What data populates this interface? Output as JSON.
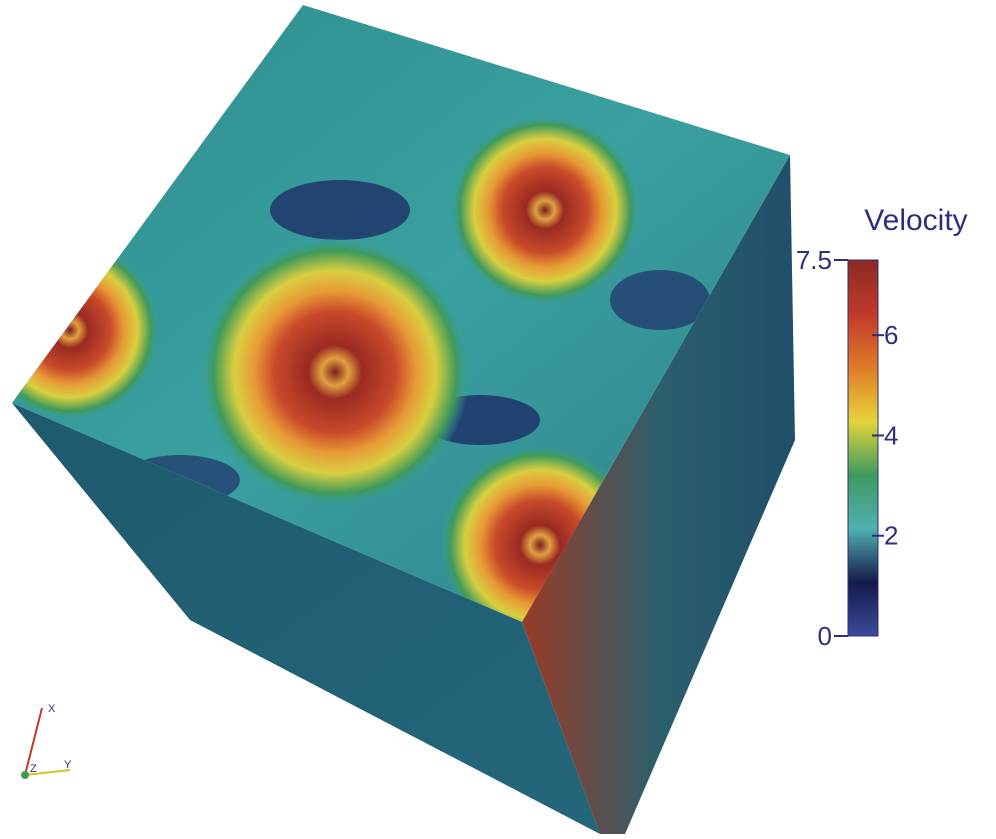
{
  "colorbar": {
    "title": "Velocity",
    "range": [
      0,
      7.5
    ],
    "ticks": [
      2,
      4,
      6
    ],
    "colors": [
      "#3b4a9c",
      "#151a4a",
      "#4fb0b0",
      "#3e9a5e",
      "#e4d43a",
      "#e07a2a",
      "#c0392b",
      "#8c2a24"
    ]
  },
  "axes_triad": [
    "X",
    "Y",
    "Z"
  ]
}
